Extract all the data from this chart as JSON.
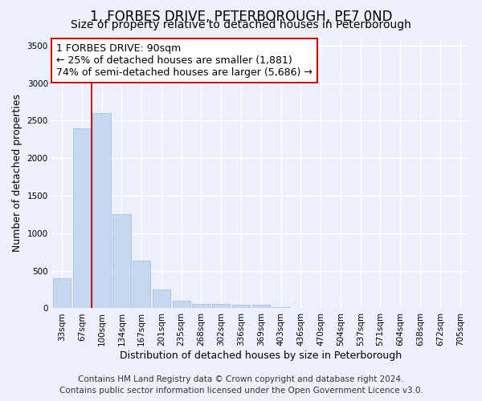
{
  "title": "1, FORBES DRIVE, PETERBOROUGH, PE7 0ND",
  "subtitle": "Size of property relative to detached houses in Peterborough",
  "xlabel": "Distribution of detached houses by size in Peterborough",
  "ylabel": "Number of detached properties",
  "footer_line1": "Contains HM Land Registry data © Crown copyright and database right 2024.",
  "footer_line2": "Contains public sector information licensed under the Open Government Licence v3.0.",
  "categories": [
    "33sqm",
    "67sqm",
    "100sqm",
    "134sqm",
    "167sqm",
    "201sqm",
    "235sqm",
    "268sqm",
    "302sqm",
    "336sqm",
    "369sqm",
    "403sqm",
    "436sqm",
    "470sqm",
    "504sqm",
    "537sqm",
    "571sqm",
    "604sqm",
    "638sqm",
    "672sqm",
    "705sqm"
  ],
  "values": [
    400,
    2400,
    2600,
    1250,
    640,
    250,
    100,
    55,
    55,
    50,
    45,
    15,
    8,
    5,
    3,
    2,
    2,
    1,
    1,
    1,
    1
  ],
  "bar_color": "#c5d8f0",
  "bar_edge_color": "#9bbcdc",
  "vline_color": "#cc0000",
  "annotation_line1": "1 FORBES DRIVE: 90sqm",
  "annotation_line2": "← 25% of detached houses are smaller (1,881)",
  "annotation_line3": "74% of semi-detached houses are larger (5,686) →",
  "annotation_box_color": "#cc0000",
  "ylim": [
    0,
    3600
  ],
  "yticks": [
    0,
    500,
    1000,
    1500,
    2000,
    2500,
    3000,
    3500
  ],
  "background_color": "#edf0fb",
  "plot_bg_color": "#edf0fb",
  "grid_color": "#ffffff",
  "title_fontsize": 12,
  "subtitle_fontsize": 10,
  "axis_label_fontsize": 9,
  "tick_fontsize": 7.5,
  "annotation_fontsize": 9,
  "footer_fontsize": 7.5
}
